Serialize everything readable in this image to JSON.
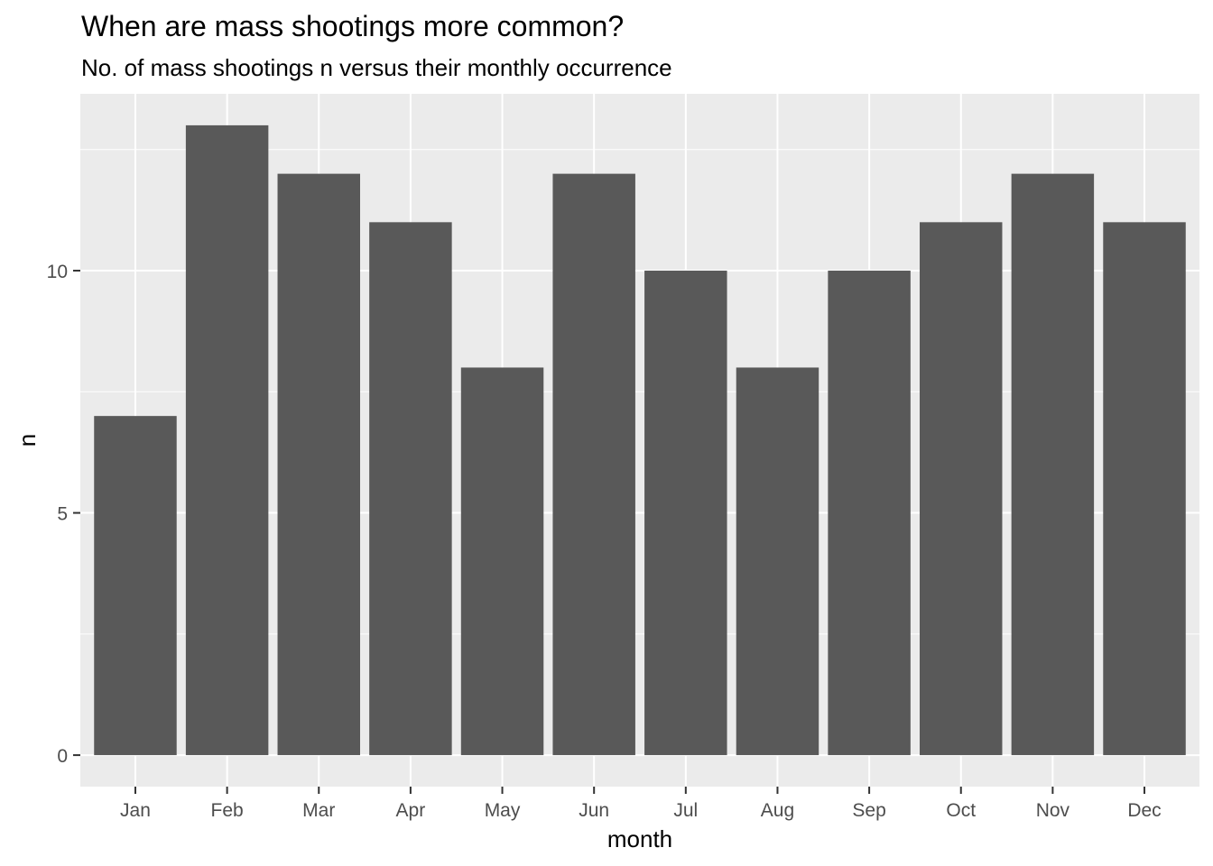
{
  "chart_data": {
    "type": "bar",
    "title": "When are mass shootings more common?",
    "subtitle": "No. of mass shootings n versus their monthly occurrence",
    "xlabel": "month",
    "ylabel": "n",
    "categories": [
      "Jan",
      "Feb",
      "Mar",
      "Apr",
      "May",
      "Jun",
      "Jul",
      "Aug",
      "Sep",
      "Oct",
      "Nov",
      "Dec"
    ],
    "values": [
      7,
      13,
      12,
      11,
      8,
      12,
      10,
      8,
      10,
      11,
      12,
      11
    ],
    "ylim": [
      -0.65,
      13.65
    ],
    "yticks": [
      0,
      5,
      10
    ],
    "ytick_labels": [
      "0",
      "5",
      "10"
    ],
    "y_minor_ticks": [
      2.5,
      7.5,
      12.5
    ],
    "grid": true,
    "legend": "none",
    "colors": {
      "bar": "#595959",
      "panel_background": "#ebebeb",
      "grid_line": "#ffffff",
      "tick_text": "#4d4d4d",
      "axis_tick": "#333333"
    }
  }
}
